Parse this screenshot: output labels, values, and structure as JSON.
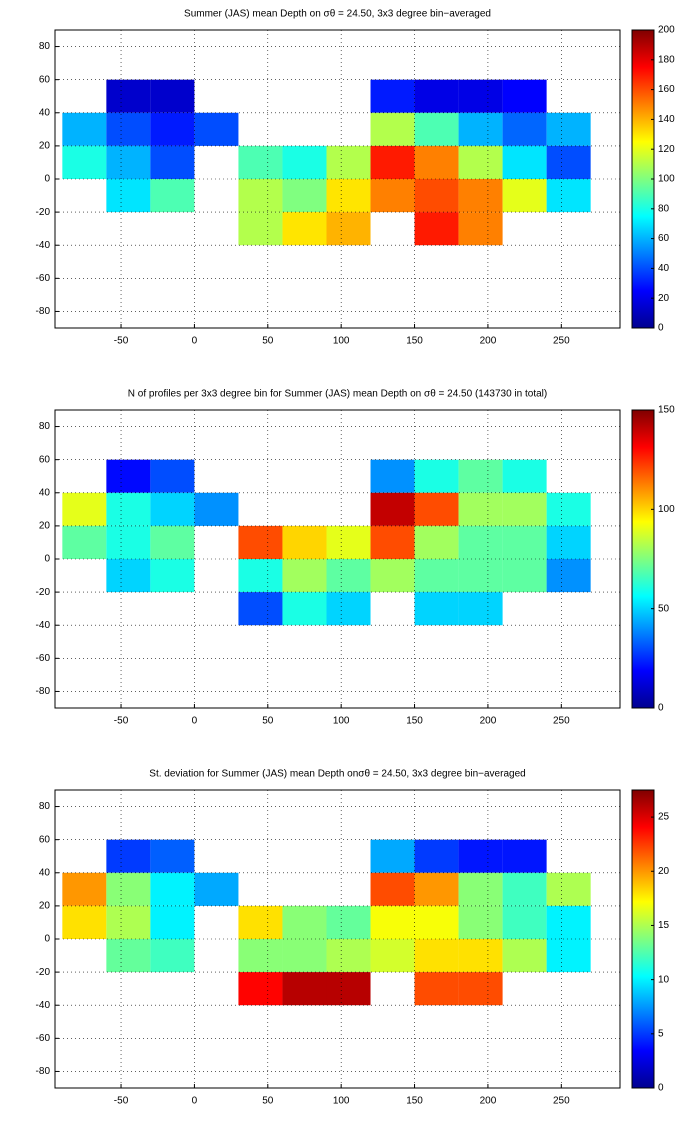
{
  "chart_data": [
    {
      "type": "heatmap",
      "title": "Summer (JAS) mean Depth on σθ = 24.50, 3x3 degree bin−averaged",
      "x": [
        -75,
        -45,
        -15,
        15,
        45,
        75,
        105,
        135,
        165,
        195,
        225,
        255
      ],
      "y": [
        50,
        30,
        10,
        -10,
        -30
      ],
      "values": [
        [
          null,
          15,
          15,
          null,
          null,
          null,
          null,
          30,
          20,
          20,
          25,
          null
        ],
        [
          60,
          40,
          30,
          40,
          null,
          null,
          null,
          110,
          90,
          60,
          45,
          60
        ],
        [
          80,
          60,
          40,
          null,
          90,
          80,
          110,
          170,
          150,
          110,
          70,
          40
        ],
        [
          null,
          70,
          90,
          null,
          110,
          100,
          130,
          150,
          160,
          150,
          120,
          70
        ],
        [
          null,
          null,
          null,
          null,
          110,
          130,
          140,
          null,
          170,
          150,
          null,
          null
        ]
      ],
      "xlim": [
        -95,
        290
      ],
      "ylim": [
        -90,
        90
      ],
      "xticks": [
        -50,
        0,
        50,
        100,
        150,
        200,
        250
      ],
      "yticks": [
        -80,
        -60,
        -40,
        -20,
        0,
        20,
        40,
        60,
        80
      ],
      "clim": [
        0,
        200
      ],
      "cticks": [
        0,
        20,
        40,
        60,
        80,
        100,
        120,
        140,
        160,
        180,
        200
      ],
      "colormap": "jet",
      "grid": true
    },
    {
      "type": "heatmap",
      "title": "N of profiles per 3x3 degree bin for Summer (JAS) mean Depth on σθ = 24.50 (143730 in total)",
      "x": [
        -75,
        -45,
        -15,
        15,
        45,
        75,
        105,
        135,
        165,
        195,
        225,
        255
      ],
      "y": [
        50,
        30,
        10,
        -10,
        -30
      ],
      "values": [
        [
          null,
          20,
          30,
          null,
          null,
          null,
          null,
          40,
          60,
          70,
          60,
          null
        ],
        [
          90,
          60,
          50,
          40,
          null,
          null,
          null,
          140,
          120,
          80,
          80,
          60
        ],
        [
          70,
          60,
          70,
          null,
          120,
          100,
          90,
          120,
          80,
          70,
          70,
          50
        ],
        [
          null,
          50,
          60,
          null,
          60,
          80,
          70,
          80,
          70,
          70,
          70,
          40
        ],
        [
          null,
          null,
          null,
          null,
          30,
          60,
          50,
          null,
          50,
          50,
          null,
          null
        ]
      ],
      "xlim": [
        -95,
        290
      ],
      "ylim": [
        -90,
        90
      ],
      "xticks": [
        -50,
        0,
        50,
        100,
        150,
        200,
        250
      ],
      "yticks": [
        -80,
        -60,
        -40,
        -20,
        0,
        20,
        40,
        60,
        80
      ],
      "clim": [
        0,
        150
      ],
      "cticks": [
        0,
        50,
        100,
        150
      ],
      "colormap": "jet",
      "grid": true
    },
    {
      "type": "heatmap",
      "title": "St. deviation for Summer (JAS) mean Depth onσθ = 24.50, 3x3 degree bin−averaged",
      "x": [
        -75,
        -45,
        -15,
        15,
        45,
        75,
        105,
        135,
        165,
        195,
        225,
        255
      ],
      "y": [
        50,
        30,
        10,
        -10,
        -30
      ],
      "values": [
        [
          null,
          5,
          6,
          null,
          null,
          null,
          null,
          8,
          5,
          4,
          4,
          null
        ],
        [
          20,
          14,
          10,
          8,
          null,
          null,
          null,
          22,
          20,
          14,
          12,
          15
        ],
        [
          18,
          15,
          10,
          null,
          18,
          14,
          13,
          17,
          17,
          14,
          12,
          10
        ],
        [
          null,
          13,
          12,
          null,
          14,
          14,
          15,
          16,
          18,
          18,
          15,
          10
        ],
        [
          null,
          null,
          null,
          null,
          24,
          26,
          26,
          null,
          22,
          22,
          null,
          null
        ]
      ],
      "xlim": [
        -95,
        290
      ],
      "ylim": [
        -90,
        90
      ],
      "xticks": [
        -50,
        0,
        50,
        100,
        150,
        200,
        250
      ],
      "yticks": [
        -80,
        -60,
        -40,
        -20,
        0,
        20,
        40,
        60,
        80
      ],
      "clim": [
        0,
        27.5
      ],
      "cticks": [
        0,
        5,
        10,
        15,
        20,
        25
      ],
      "colormap": "jet",
      "grid": true
    }
  ]
}
